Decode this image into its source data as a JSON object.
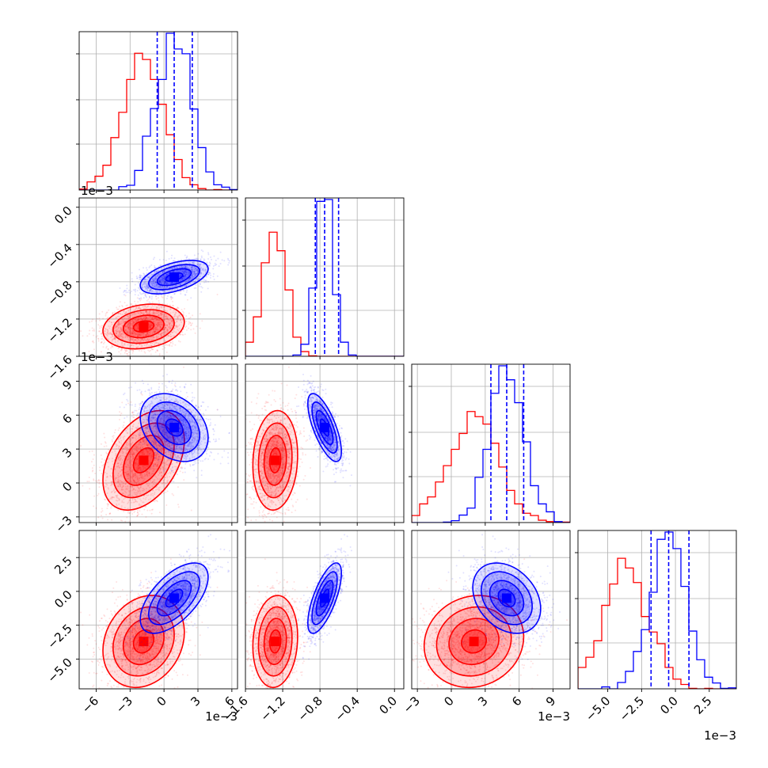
{
  "colors": {
    "red": "#ff0000",
    "blue": "#0000ff",
    "grid": "#b0b0b0"
  },
  "chart_data": {
    "type": "corner",
    "grid": true,
    "params": [
      {
        "range": [
          -0.0075,
          0.0065
        ],
        "ticks": [
          -6,
          -3,
          0,
          3,
          6
        ],
        "ticklabels": [
          "−6",
          "−3",
          "0",
          "3",
          "6"
        ],
        "offset": "1e−3"
      },
      {
        "range": [
          -0.0016,
          0.0001
        ],
        "ticks": [
          -1.6,
          -1.2,
          -0.8,
          -0.4,
          0.0
        ],
        "ticklabels": [
          "−1.6",
          "−1.2",
          "−0.8",
          "−0.4",
          "0.0"
        ],
        "offset": "1e−3"
      },
      {
        "range": [
          -0.0035,
          0.0105
        ],
        "ticks": [
          -3,
          0,
          3,
          6,
          9
        ],
        "ticklabels": [
          "−3",
          "0",
          "3",
          "6",
          "9"
        ],
        "offset": "1e−3"
      },
      {
        "range": [
          -0.0072,
          0.0045
        ],
        "ticks": [
          -5.0,
          -2.5,
          0.0,
          2.5
        ],
        "ticklabels": [
          "−5.0",
          "−2.5",
          "0.0",
          "2.5"
        ],
        "offset": "1e−3"
      }
    ],
    "series": [
      {
        "color": "red",
        "mean": [
          -0.0018,
          -0.00128,
          0.002,
          -0.0037
        ],
        "sd": [
          0.0018,
          0.00012,
          0.0022,
          0.0017
        ],
        "corr": {
          "0-1": 0.2,
          "0-2": 0.4,
          "0-3": 0.2,
          "1-2": 0.1,
          "1-3": 0.1,
          "2-3": 0.1
        }
      },
      {
        "color": "blue",
        "mean": [
          0.0009,
          -0.00075,
          0.0049,
          -0.0005
        ],
        "sd": [
          0.0015,
          9e-05,
          0.0015,
          0.0013
        ],
        "corr": {
          "0-1": 0.5,
          "0-2": -0.3,
          "0-3": 0.6,
          "1-2": -0.7,
          "1-3": 0.7,
          "2-3": -0.3
        }
      }
    ],
    "quantiles_blue": [
      [
        -0.0006,
        0.0009,
        0.0025
      ],
      [
        -0.00085,
        -0.00075,
        -0.0006
      ],
      [
        0.0035,
        0.0049,
        0.0064
      ],
      [
        -0.0018,
        -0.0005,
        0.001
      ]
    ]
  }
}
